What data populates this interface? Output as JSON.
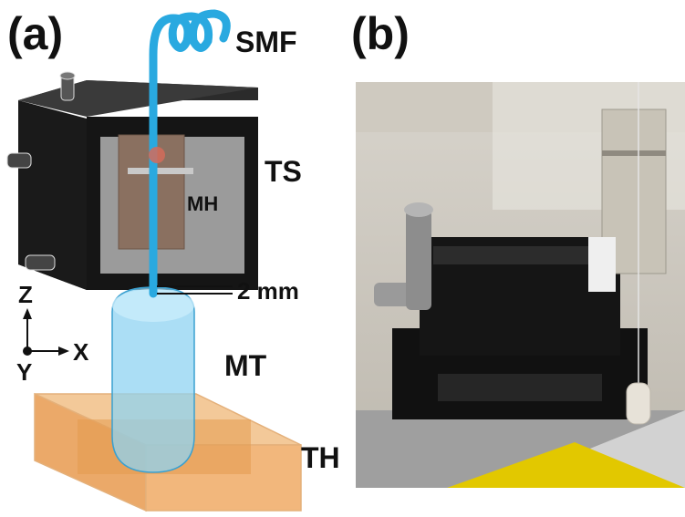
{
  "panels": {
    "a_label": "(a)",
    "b_label": "(b)"
  },
  "schematic": {
    "labels": {
      "smf": "SMF",
      "ts": "TS",
      "mh": "MH",
      "gap": "2 mm",
      "mt": "MT",
      "th": "TH"
    },
    "axes": {
      "z": "Z",
      "x": "X",
      "y": "Y"
    },
    "colors": {
      "fiber": "#29a9e0",
      "stage_body": "#1a1a1a",
      "stage_face": "#9b9b9b",
      "holder": "#8a7060",
      "tube": "#8fd3f2",
      "tube_holder": "#e8a25a"
    }
  },
  "photo": {
    "description_icon": "lab-photo-translation-stage"
  }
}
